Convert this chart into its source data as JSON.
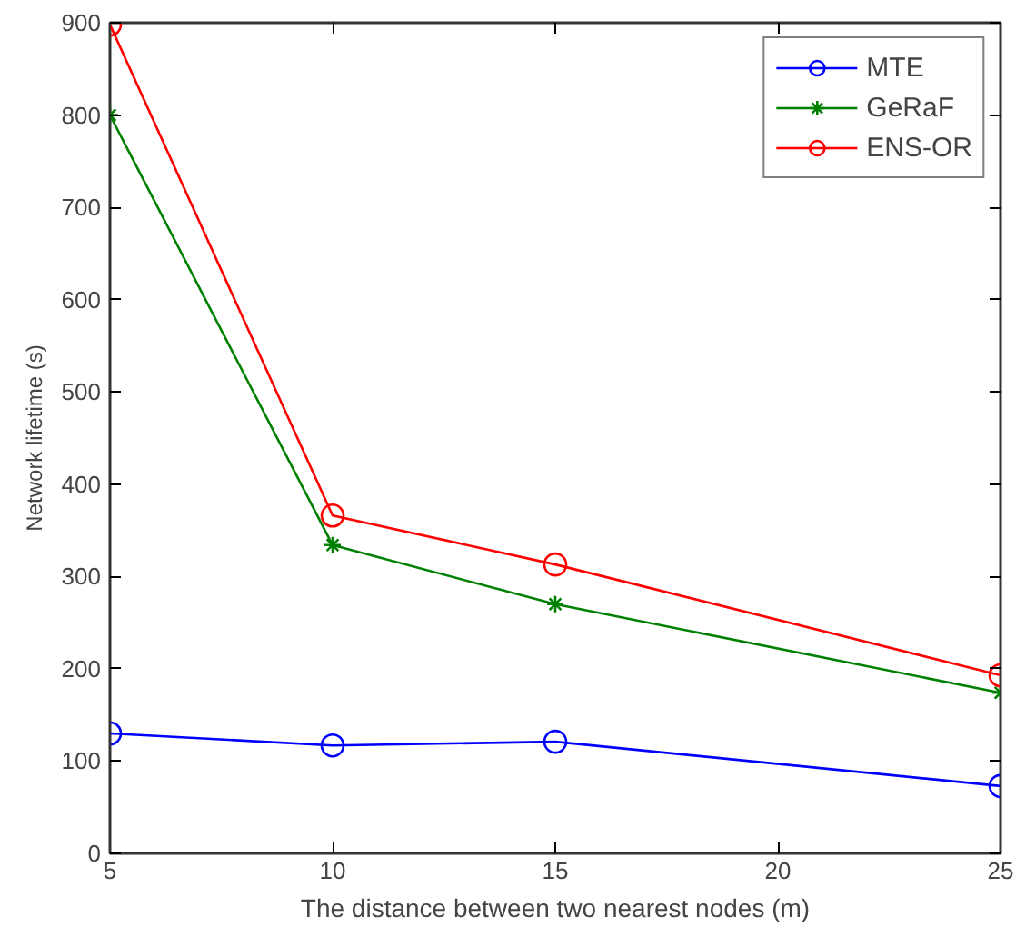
{
  "chart_data": {
    "type": "line",
    "xlabel": "The distance between two nearest nodes (m)",
    "ylabel": "Network lifetime (s)",
    "x": [
      5,
      10,
      15,
      25
    ],
    "series": [
      {
        "name": "MTE",
        "color": "#0000ff",
        "marker": "circle",
        "values": [
          130,
          117,
          121,
          73
        ]
      },
      {
        "name": "GeRaF",
        "color": "#008000",
        "marker": "cross",
        "values": [
          800,
          334,
          270,
          174
        ]
      },
      {
        "name": "ENS-OR",
        "color": "#ff0000",
        "marker": "circle",
        "values": [
          898,
          366,
          313,
          193
        ]
      }
    ],
    "xlim": [
      5,
      25
    ],
    "xticks": [
      5,
      10,
      15,
      20,
      25
    ],
    "ylim": [
      0,
      900
    ],
    "yticks": [
      0,
      100,
      200,
      300,
      400,
      500,
      600,
      700,
      800,
      900
    ],
    "grid": false,
    "legend": "top right",
    "line_style": "solid"
  }
}
